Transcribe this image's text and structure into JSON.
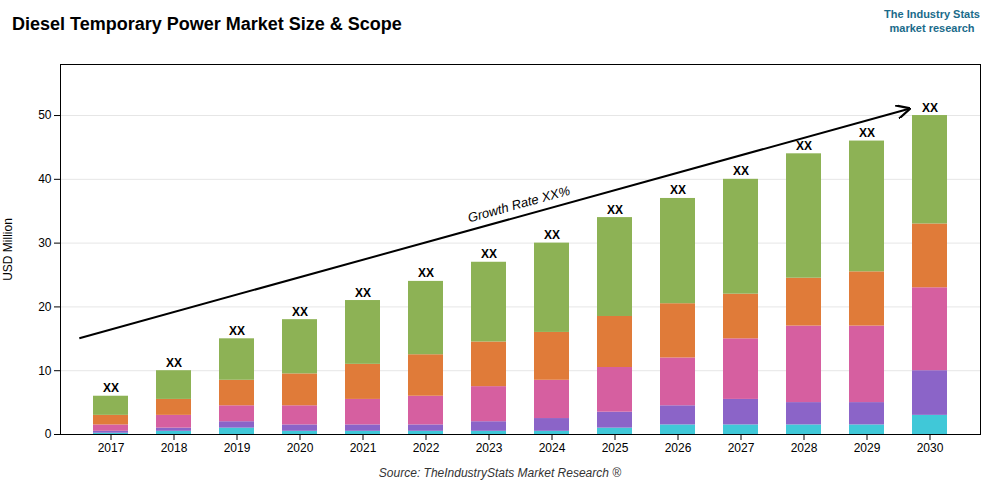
{
  "chart_data": {
    "type": "bar",
    "stacked": true,
    "title": "Diesel Temporary Power Market Size & Scope",
    "ylabel": "USD Million",
    "source": "Source: TheIndustryStats Market Research ®",
    "logo": [
      "The Industry Stats",
      "market research"
    ],
    "arrow_label": "Growth Rate XX%",
    "categories": [
      "2017",
      "2018",
      "2019",
      "2020",
      "2021",
      "2022",
      "2023",
      "2024",
      "2025",
      "2026",
      "2027",
      "2028",
      "2029",
      "2030"
    ],
    "series": [
      {
        "color": "#40c8d8",
        "values": [
          0.2,
          0.5,
          1.0,
          0.5,
          0.5,
          0.5,
          0.5,
          0.5,
          1.0,
          1.5,
          1.5,
          1.5,
          1.5,
          3.0
        ]
      },
      {
        "color": "#8b64c8",
        "values": [
          0.3,
          0.5,
          1.0,
          1.0,
          1.0,
          1.0,
          1.5,
          2.0,
          2.5,
          3.0,
          4.0,
          3.5,
          3.5,
          7.0
        ]
      },
      {
        "color": "#d65fa0",
        "values": [
          1.0,
          2.0,
          2.5,
          3.0,
          4.0,
          4.5,
          5.5,
          6.0,
          7.0,
          7.5,
          9.5,
          12.0,
          12.0,
          13.0
        ]
      },
      {
        "color": "#e07b39",
        "values": [
          1.5,
          2.5,
          4.0,
          5.0,
          5.5,
          6.5,
          7.0,
          7.5,
          8.0,
          8.5,
          7.0,
          7.5,
          8.5,
          10.0
        ]
      },
      {
        "color": "#8db255",
        "values": [
          3.0,
          4.5,
          6.5,
          8.5,
          10.0,
          11.5,
          12.5,
          14.0,
          15.5,
          16.5,
          18.0,
          19.5,
          20.5,
          17.0
        ]
      }
    ],
    "totals": [
      6,
      10,
      15,
      18,
      21,
      24,
      27,
      30,
      34,
      37,
      40,
      44,
      46,
      50
    ],
    "total_labels": [
      "XX",
      "XX",
      "XX",
      "XX",
      "XX",
      "XX",
      "XX",
      "XX",
      "XX",
      "XX",
      "XX",
      "XX",
      "XX",
      "XX"
    ],
    "ylim": [
      0,
      58
    ],
    "yticks": [
      0,
      10,
      20,
      30,
      40,
      50
    ],
    "grid": true
  }
}
